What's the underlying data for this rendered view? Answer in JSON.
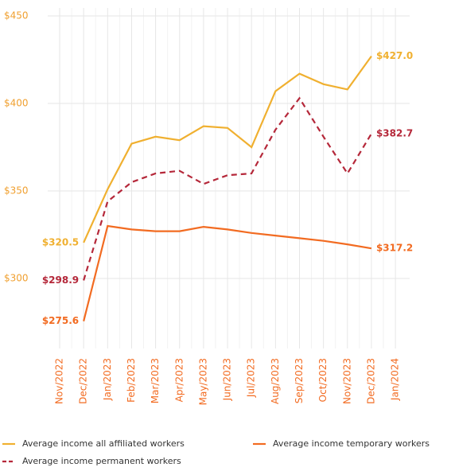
{
  "chart_data": {
    "type": "line",
    "categories": [
      "Nov/2022",
      "Dec/2022",
      "Jan/2023",
      "Feb/2023",
      "Mar/2023",
      "Apr/2023",
      "May/2023",
      "Jun/2023",
      "Jul/2023",
      "Aug/2023",
      "Sep/2023",
      "Oct/2023",
      "Nov/2023",
      "Dec/2023",
      "Jan/2024"
    ],
    "series": [
      {
        "name": "Average income all affiliated workers",
        "color": "#f0b030",
        "dashed": false,
        "values": [
          null,
          320.5,
          351,
          377,
          381,
          379,
          387,
          386,
          375,
          407,
          417,
          411,
          408,
          427.0,
          null
        ],
        "value_labels": [
          null,
          "$320.5",
          null,
          null,
          null,
          null,
          null,
          null,
          null,
          null,
          null,
          null,
          null,
          "$427.0",
          null
        ]
      },
      {
        "name": "Average income temporary workers",
        "color": "#f26b21",
        "dashed": false,
        "values": [
          null,
          275.6,
          330,
          328,
          327,
          327,
          329.5,
          328,
          326,
          324.5,
          323,
          321.5,
          319.5,
          317.2,
          null
        ],
        "value_labels": [
          null,
          "$275.6",
          null,
          null,
          null,
          null,
          null,
          null,
          null,
          null,
          null,
          null,
          null,
          "$317.2",
          null
        ]
      },
      {
        "name": "Average income permanent workers",
        "color": "#b5283a",
        "dashed": true,
        "values": [
          null,
          298.9,
          344,
          355,
          360,
          361.5,
          354,
          359,
          360,
          385,
          403,
          381,
          360,
          382.7,
          null
        ],
        "value_labels": [
          null,
          "$298.9",
          null,
          null,
          null,
          null,
          null,
          null,
          null,
          null,
          null,
          null,
          null,
          "$382.7",
          null
        ]
      }
    ],
    "ylim": [
      260,
      450
    ],
    "yticks": [
      {
        "value": 300,
        "label": "$300"
      },
      {
        "value": 350,
        "label": "$350"
      },
      {
        "value": 400,
        "label": "$400"
      },
      {
        "value": 450,
        "label": "$450"
      }
    ],
    "grid": true
  }
}
